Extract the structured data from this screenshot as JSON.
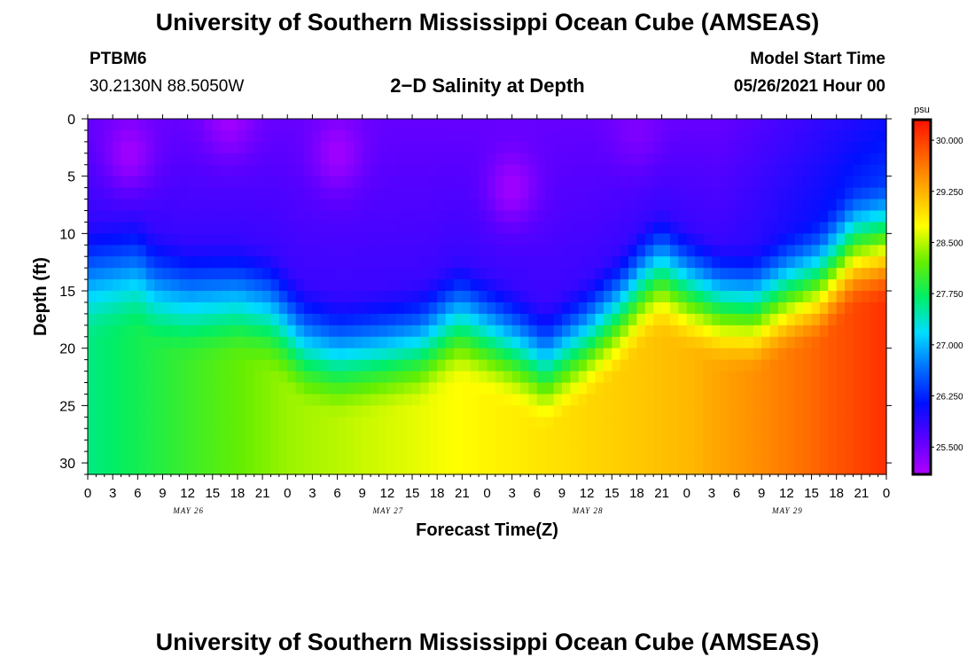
{
  "header": {
    "title": "University of Southern Mississippi Ocean Cube (AMSEAS)",
    "station_id": "PTBM6",
    "coordinates": "30.2130N  88.5050W",
    "plot_title": "2−D Salinity at Depth",
    "model_start_label": "Model Start Time",
    "model_start_value": "05/26/2021 Hour 00"
  },
  "footer": {
    "title": "University of Southern Mississippi Ocean Cube (AMSEAS)"
  },
  "chart_data": {
    "type": "heatmap",
    "title": "2-D Salinity at Depth",
    "xlabel": "Forecast Time(Z)",
    "ylabel": "Depth (ft)",
    "x_range_hours": [
      0,
      96
    ],
    "y_range_ft": [
      0,
      31
    ],
    "x_tick_labels": [
      "0",
      "3",
      "6",
      "9",
      "12",
      "15",
      "18",
      "21",
      "0",
      "3",
      "6",
      "9",
      "12",
      "15",
      "18",
      "21",
      "0",
      "3",
      "6",
      "9",
      "12",
      "15",
      "18",
      "21",
      "0",
      "3",
      "6",
      "9",
      "12",
      "15",
      "18",
      "21",
      "0"
    ],
    "date_labels": [
      {
        "label": "MAY 26",
        "hour": 12
      },
      {
        "label": "MAY 27",
        "hour": 36
      },
      {
        "label": "MAY 28",
        "hour": 60
      },
      {
        "label": "MAY 29",
        "hour": 84
      }
    ],
    "y_ticks": [
      0,
      5,
      10,
      15,
      20,
      25,
      30
    ],
    "colorbar": {
      "unit": "psu",
      "range": [
        25.1,
        30.3
      ],
      "tick_labels": [
        "30.000",
        "29.250",
        "28.500",
        "27.750",
        "27.000",
        "26.250",
        "25.500"
      ],
      "tick_values": [
        30.0,
        29.25,
        28.5,
        27.75,
        27.0,
        26.25,
        25.5
      ]
    },
    "halocline_depth_ft": {
      "hours": [
        0,
        6,
        8,
        12,
        18,
        22,
        26,
        30,
        33,
        36,
        40,
        44,
        45,
        48,
        52,
        55,
        57,
        60,
        64,
        67,
        69,
        72,
        76,
        80,
        84,
        88,
        92,
        96
      ],
      "values": [
        13.5,
        13.0,
        14.5,
        15.5,
        15.5,
        16.5,
        19.5,
        20.5,
        20.3,
        20.0,
        19.5,
        17.5,
        17.3,
        18.5,
        20.0,
        21.5,
        20.5,
        19.0,
        16.5,
        14.0,
        13.0,
        14.5,
        16.0,
        16.5,
        15.0,
        14.0,
        11.0,
        10.5
      ]
    },
    "bottom_salinity_psu": {
      "hours": [
        0,
        12,
        24,
        36,
        48,
        60,
        72,
        84,
        96
      ],
      "values": [
        27.6,
        28.0,
        28.4,
        28.6,
        28.8,
        29.0,
        29.2,
        29.6,
        30.1
      ]
    },
    "surface_patches": [
      {
        "hour": 5,
        "depth_ft": 3,
        "psu": 25.2
      },
      {
        "hour": 17,
        "depth_ft": 0,
        "psu": 25.2
      },
      {
        "hour": 30,
        "depth_ft": 3,
        "psu": 25.2
      },
      {
        "hour": 51,
        "depth_ft": 6,
        "psu": 25.2
      },
      {
        "hour": 66,
        "depth_ft": 1,
        "psu": 25.4
      }
    ]
  }
}
